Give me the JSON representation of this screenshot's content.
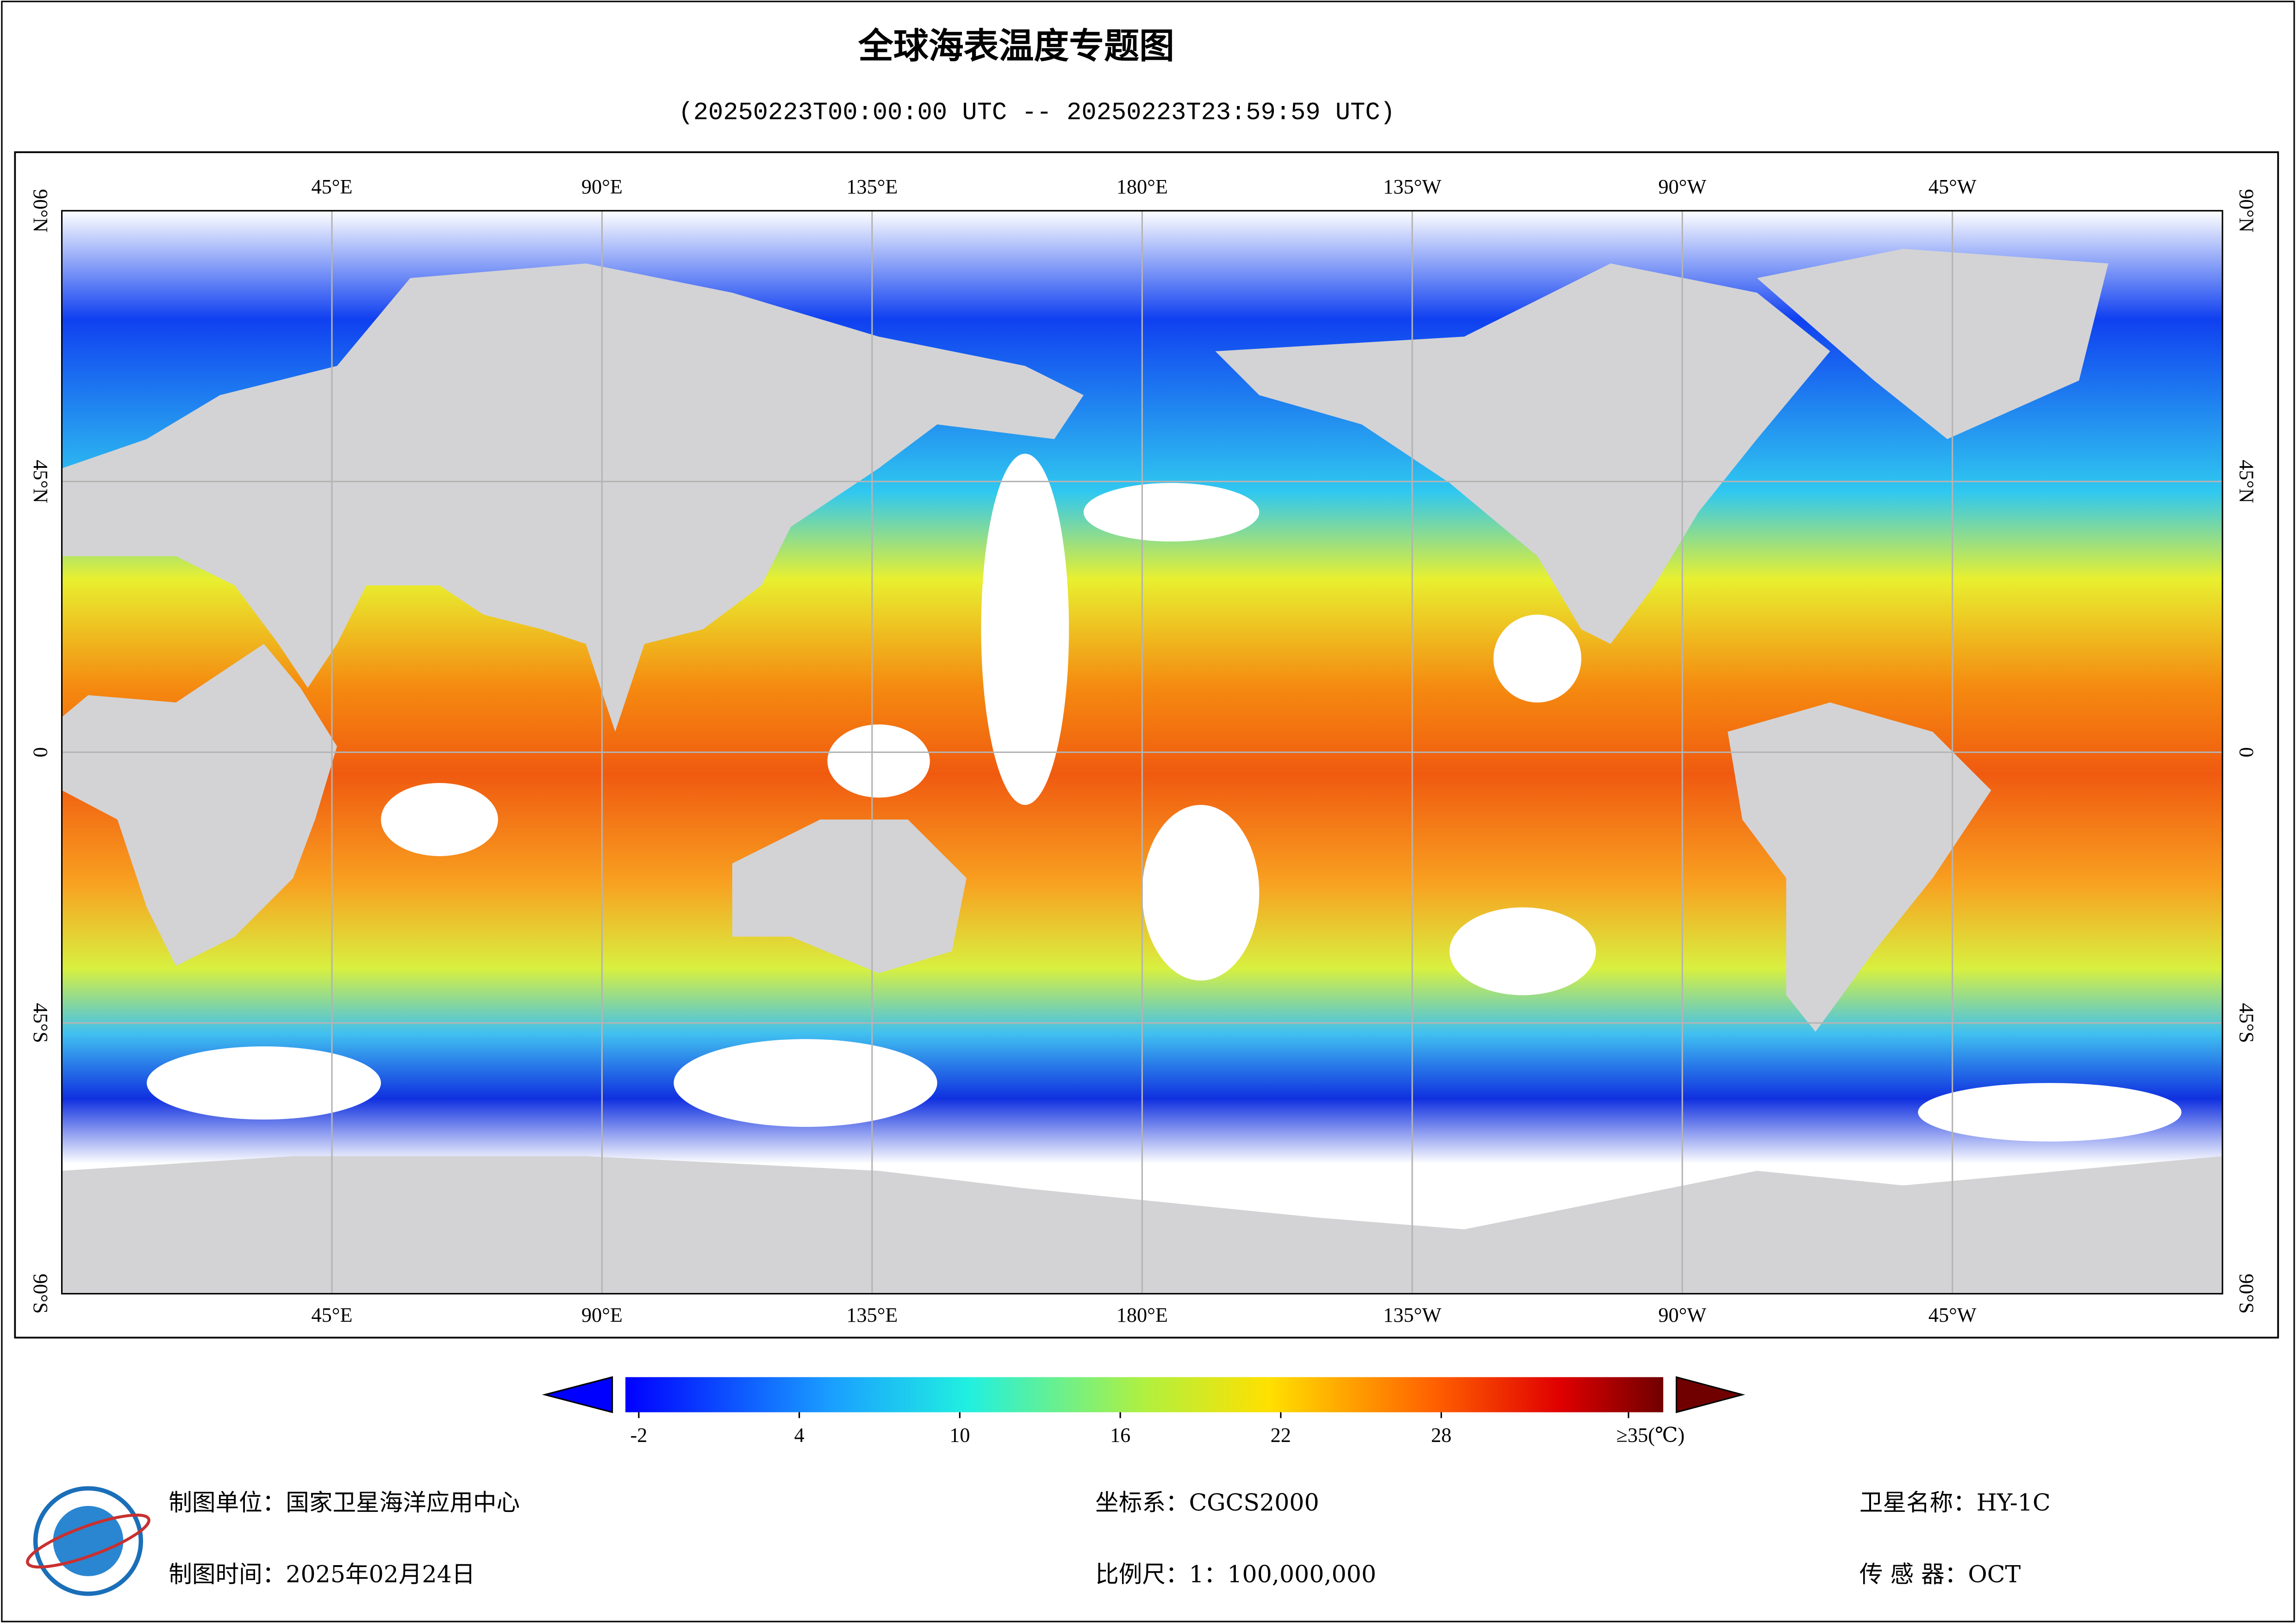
{
  "header": {
    "title": "全球海表温度专题图",
    "subtitle": "(20250223T00:00:00 UTC -- 20250223T23:59:59 UTC)"
  },
  "map": {
    "lonlim": [
      0,
      360
    ],
    "latlim": [
      -90,
      90
    ],
    "lonticks": [
      {
        "value": 45,
        "label": "45°E"
      },
      {
        "value": 90,
        "label": "90°E"
      },
      {
        "value": 135,
        "label": "135°E"
      },
      {
        "value": 180,
        "label": "180°E"
      },
      {
        "value": 225,
        "label": "135°W"
      },
      {
        "value": 270,
        "label": "90°W"
      },
      {
        "value": 315,
        "label": "45°W"
      }
    ],
    "latticks": [
      {
        "value": 90,
        "label": "90°N"
      },
      {
        "value": 45,
        "label": "45°N"
      },
      0,
      {
        "value": -45,
        "label": "45°S"
      },
      {
        "value": -90,
        "label": "90°S"
      }
    ],
    "grid": true
  },
  "colorbar": {
    "lim": [
      -2.5,
      36.3
    ],
    "ticks": [
      -2,
      4,
      10,
      16,
      22,
      28,
      {
        "value": 35,
        "label": "≥35(℃)"
      }
    ]
  },
  "footer": {
    "org": "制图单位：国家卫星海洋应用中心",
    "date": "制图时间：2025年02月24日",
    "crs": "坐标系：CGCS2000",
    "scale": "比例尺：1：100,000,000",
    "satellite": "卫星名称：HY-1C",
    "sensor": "传 感 器：OCT"
  }
}
